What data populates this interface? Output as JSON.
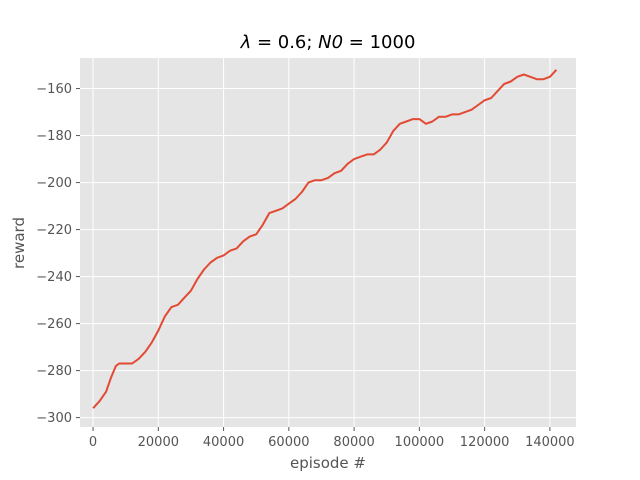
{
  "chart_data": {
    "type": "line",
    "title_parts": [
      {
        "text": "λ",
        "italic": true
      },
      {
        "text": " = 0.6; ",
        "italic": false
      },
      {
        "text": "N0",
        "italic": true
      },
      {
        "text": " = 1000",
        "italic": false
      }
    ],
    "xlabel": "episode #",
    "ylabel": "reward",
    "xlim": [
      -4000,
      148000
    ],
    "ylim": [
      -304,
      -147
    ],
    "xticks": [
      0,
      20000,
      40000,
      60000,
      80000,
      100000,
      120000,
      140000
    ],
    "yticks": [
      -300,
      -280,
      -260,
      -240,
      -220,
      -200,
      -180,
      -160
    ],
    "xtick_labels": [
      "0",
      "20000",
      "40000",
      "60000",
      "80000",
      "100000",
      "120000",
      "140000"
    ],
    "ytick_labels": [
      "−300",
      "−280",
      "−260",
      "−240",
      "−220",
      "−200",
      "−180",
      "−160"
    ],
    "grid": true,
    "background": "#E5E5E5",
    "grid_color": "#FFFFFF",
    "series": [
      {
        "color": "#E24A33",
        "x": [
          0,
          2000,
          4000,
          5500,
          7000,
          8000,
          10000,
          12000,
          14000,
          16000,
          18000,
          20000,
          22000,
          24000,
          26000,
          28000,
          30000,
          32000,
          34000,
          36000,
          38000,
          40000,
          42000,
          44000,
          46000,
          48000,
          50000,
          52000,
          54000,
          56000,
          58000,
          60000,
          62000,
          64000,
          66000,
          68000,
          70000,
          72000,
          74000,
          76000,
          78000,
          80000,
          82000,
          84000,
          86000,
          88000,
          90000,
          92000,
          94000,
          96000,
          98000,
          100000,
          102000,
          104000,
          106000,
          108000,
          110000,
          112000,
          114000,
          116000,
          118000,
          120000,
          122000,
          124000,
          126000,
          128000,
          130000,
          132000,
          134000,
          136000,
          138000,
          140000,
          142000
        ],
        "values": [
          -296,
          -293,
          -289,
          -283,
          -278,
          -277,
          -277,
          -277,
          -275,
          -272,
          -268,
          -263,
          -257,
          -253,
          -252,
          -249,
          -246,
          -241,
          -237,
          -234,
          -232,
          -231,
          -229,
          -228,
          -225,
          -223,
          -222,
          -218,
          -213,
          -212,
          -211,
          -209,
          -207,
          -204,
          -200,
          -199,
          -199,
          -198,
          -196,
          -195,
          -192,
          -190,
          -189,
          -188,
          -188,
          -186,
          -183,
          -178,
          -175,
          -174,
          -173,
          -173,
          -175,
          -174,
          -172,
          -172,
          -171,
          -171,
          -170,
          -169,
          -167,
          -165,
          -164,
          -161,
          -158,
          -157,
          -155,
          -154,
          -155,
          -156,
          -156,
          -155,
          -152
        ]
      }
    ]
  }
}
